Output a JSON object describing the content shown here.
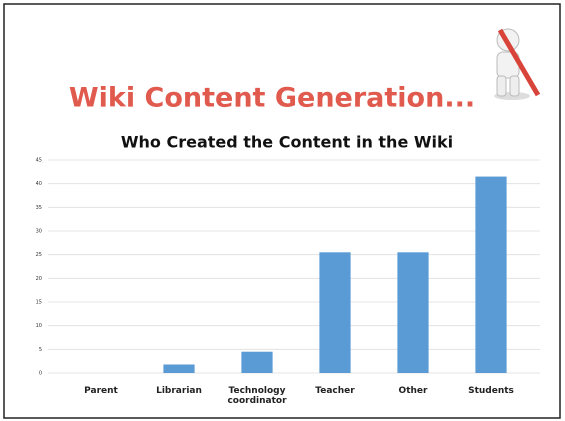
{
  "slide_title": "Wiki Content Generation...",
  "chart_data": {
    "type": "bar",
    "title": "Who Created the Content in the Wiki",
    "categories": [
      "Parent",
      "Librarian",
      "Technology coordinator",
      "Teacher",
      "Other",
      "Students"
    ],
    "values": [
      0,
      1.8,
      4.5,
      25.5,
      25.5,
      41.5
    ],
    "color": "#5b9bd5",
    "ylim": [
      0,
      45
    ],
    "yticks": [
      0,
      5,
      10,
      15,
      20,
      25,
      30,
      35,
      40,
      45
    ],
    "grid": true
  }
}
